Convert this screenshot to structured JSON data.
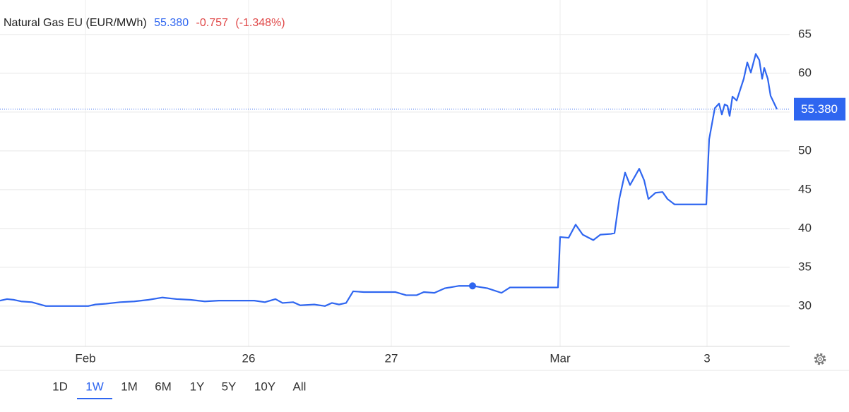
{
  "chart_data": {
    "type": "line",
    "title": "Natural Gas EU (EUR/MWh)",
    "price": "55.380",
    "change": "-0.757",
    "change_pct": "(-1.348%)",
    "series": [
      {
        "name": "Natural Gas EU (EUR/MWh)",
        "color": "#2f66f0",
        "x": [
          0,
          1,
          2,
          3,
          4.5,
          6.5,
          9,
          12.5,
          13.5,
          15,
          17,
          19,
          21,
          23,
          25,
          27,
          29,
          31,
          34,
          36,
          37.5,
          39,
          40,
          41.5,
          42.5,
          44.5,
          46,
          47,
          48,
          49,
          50,
          51.5,
          56,
          57.5,
          59,
          60,
          61.5,
          63,
          65,
          66.9,
          69,
          71,
          72.2,
          79,
          79.3,
          80.5,
          81.5,
          82.5,
          84,
          85,
          86.5,
          87,
          87.7,
          88.5,
          89.2,
          90.5,
          91.2,
          91.8,
          92.8,
          93.8,
          94.5,
          95.5,
          100,
          100.4,
          101.2,
          101.8,
          102.2,
          102.6,
          103,
          103.3,
          103.7,
          104.3,
          104.8,
          105.3,
          105.8,
          106.3,
          107,
          107.5,
          107.9,
          108.2,
          108.7,
          109.1,
          110
        ],
        "values": [
          30.7,
          30.9,
          30.8,
          30.6,
          30.5,
          30.0,
          30.0,
          30.0,
          30.2,
          30.3,
          30.5,
          30.6,
          30.8,
          31.1,
          30.9,
          30.8,
          30.6,
          30.7,
          30.7,
          30.7,
          30.5,
          30.9,
          30.4,
          30.5,
          30.1,
          30.2,
          30.0,
          30.4,
          30.2,
          30.4,
          31.9,
          31.8,
          31.8,
          31.4,
          31.4,
          31.8,
          31.7,
          32.3,
          32.6,
          32.6,
          32.3,
          31.7,
          32.4,
          32.4,
          38.9,
          38.8,
          40.5,
          39.2,
          38.5,
          39.2,
          39.3,
          39.4,
          43.9,
          47.2,
          45.6,
          47.7,
          46.2,
          43.8,
          44.6,
          44.7,
          43.8,
          43.1,
          43.1,
          51.5,
          55.5,
          56.1,
          54.7,
          56.0,
          55.8,
          54.5,
          57.0,
          56.5,
          57.9,
          59.3,
          61.4,
          60.1,
          62.5,
          61.7,
          59.3,
          60.7,
          59.3,
          57.1,
          55.38
        ]
      }
    ],
    "xlim": [
      0,
      111.8
    ],
    "xticks": [
      {
        "value": 12.1,
        "label": "Feb"
      },
      {
        "value": 35.2,
        "label": "26"
      },
      {
        "value": 55.4,
        "label": "27"
      },
      {
        "value": 79.3,
        "label": "Mar"
      },
      {
        "value": 100.1,
        "label": "3"
      }
    ],
    "ylim": [
      24.8,
      69.45
    ],
    "yticks": [
      30,
      35,
      40,
      45,
      50,
      55,
      60,
      65
    ],
    "grid": true,
    "ranges": [
      "1D",
      "1W",
      "1M",
      "6M",
      "1Y",
      "5Y",
      "10Y",
      "All"
    ],
    "selected_range": 1
  }
}
